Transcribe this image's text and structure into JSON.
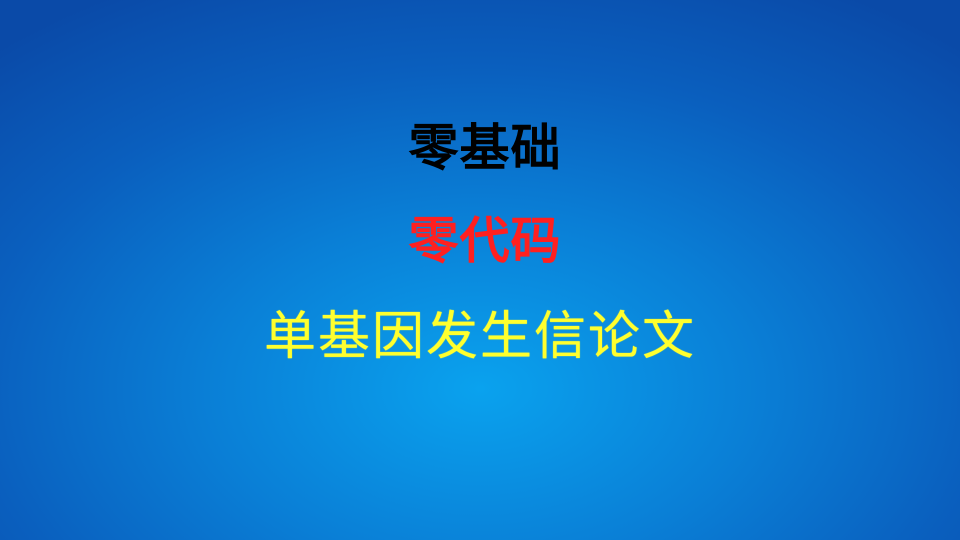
{
  "slide": {
    "background_color_center": "#0aa2ee",
    "background_color_edge": "#0a4aa8",
    "lines": [
      {
        "text": "零基础",
        "color": "#000000"
      },
      {
        "text": "零代码",
        "color": "#ff2020"
      },
      {
        "text": "单基因发生信论文",
        "color": "#ffff2e"
      }
    ]
  }
}
